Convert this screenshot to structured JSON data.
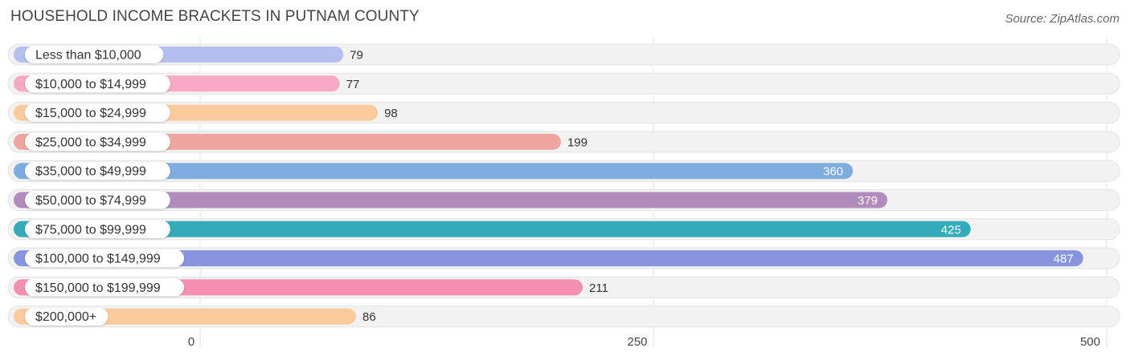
{
  "chart_data": {
    "type": "bar",
    "orientation": "horizontal",
    "title": "HOUSEHOLD INCOME BRACKETS IN PUTNAM COUNTY",
    "source": "Source: ZipAtlas.com",
    "categories": [
      "Less than $10,000",
      "$10,000 to $14,999",
      "$15,000 to $24,999",
      "$25,000 to $34,999",
      "$35,000 to $49,999",
      "$50,000 to $74,999",
      "$75,000 to $99,999",
      "$100,000 to $149,999",
      "$150,000 to $199,999",
      "$200,000+"
    ],
    "values": [
      79,
      77,
      98,
      199,
      360,
      379,
      425,
      487,
      211,
      86
    ],
    "value_labels": [
      "79",
      "77",
      "98",
      "199",
      "360",
      "379",
      "425",
      "487",
      "211",
      "86"
    ],
    "colors": [
      "#b5bff0",
      "#f7a9c6",
      "#fbcb9d",
      "#eea59f",
      "#7eacdf",
      "#b28bbd",
      "#34abb8",
      "#8795de",
      "#f58fb2",
      "#fbcb9d"
    ],
    "xlim": [
      0,
      500
    ],
    "xticks": [
      0,
      250,
      500
    ],
    "xtick_labels": [
      "0",
      "250",
      "500"
    ],
    "grid": true,
    "xlabel": "",
    "ylabel": ""
  }
}
